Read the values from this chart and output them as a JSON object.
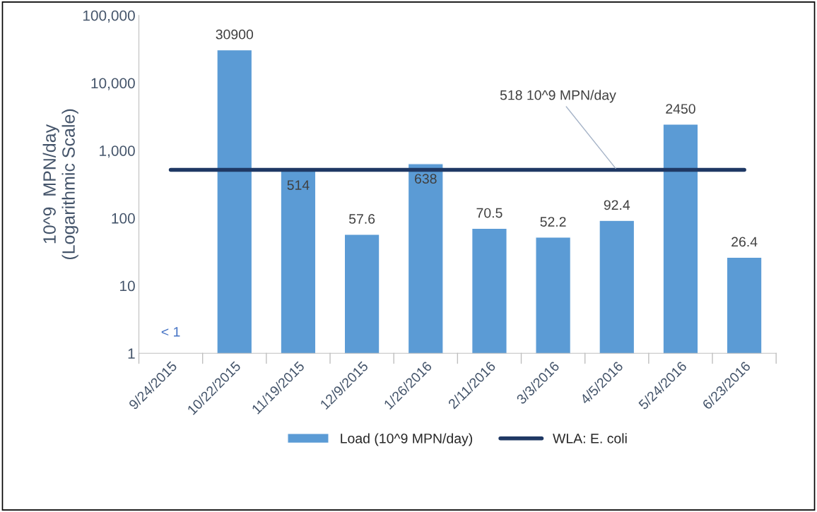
{
  "chart_data": {
    "type": "bar",
    "ylabel": "10^9  MPN/day\n(Logarithmic Scale)",
    "categories": [
      "9/24/2015",
      "10/22/2015",
      "11/19/2015",
      "12/9/2015",
      "1/26/2016",
      "2/11/2016",
      "3/3/2016",
      "4/5/2016",
      "5/24/2016",
      "6/23/2016"
    ],
    "series": [
      {
        "name": "Load (10^9 MPN/day)",
        "color": "#5b9bd5",
        "values": [
          null,
          30900,
          514,
          57.6,
          638,
          70.5,
          52.2,
          92.4,
          2450,
          26.4
        ],
        "value_labels": [
          null,
          "30900",
          "514",
          "57.6",
          "638",
          "70.5",
          "52.2",
          "92.4",
          "2450",
          "26.4"
        ]
      },
      {
        "name": "WLA: E. coli",
        "type": "line",
        "color": "#1f3864",
        "values": [
          518,
          518,
          518,
          518,
          518,
          518,
          518,
          518,
          518,
          518
        ]
      }
    ],
    "log": "y",
    "ylim": [
      1,
      100000
    ],
    "yticks": [
      1,
      10,
      100,
      {
        "value": 1000,
        "label": "1,000"
      },
      {
        "value": 10000,
        "label": "10,000"
      },
      {
        "value": 100000,
        "label": "100,000"
      }
    ],
    "grid": false,
    "legend": "bottom",
    "annotations": [
      "< 1",
      {
        "text": "518 10^9 MPN/day",
        "x": "4/5/2016",
        "y": 518
      }
    ]
  }
}
